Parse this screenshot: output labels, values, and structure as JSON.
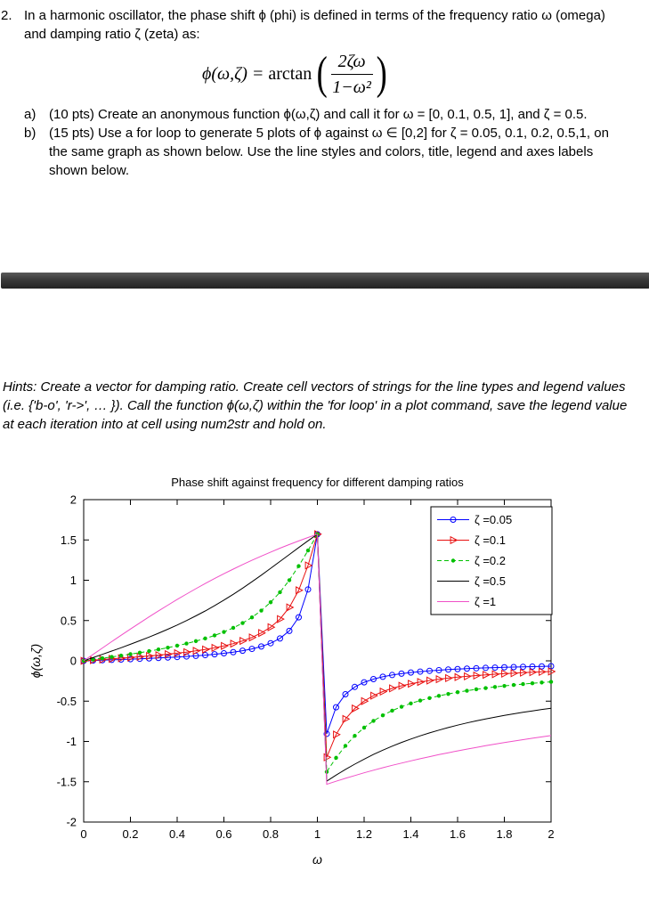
{
  "document": {
    "problem_number": "2.",
    "intro": "In a harmonic oscillator, the phase shift ϕ (phi) is defined in terms of the frequency ratio ω (omega) and damping ratio ζ (zeta) as:",
    "formula": {
      "lhs": "ϕ(ω,ζ) =",
      "function": "arctan",
      "numerator": "2ζω",
      "denominator": "1−ω²"
    },
    "items": [
      {
        "label": "a)",
        "text": "(10 pts) Create an anonymous function ϕ(ω,ζ) and call it for ω = [0, 0.1, 0.5, 1], and ζ = 0.5."
      },
      {
        "label": "b)",
        "text": "(15 pts) Use a for loop to generate 5 plots of ϕ against ω ∈ [0,2] for ζ = 0.05, 0.1, 0.2, 0.5,1, on the same graph as shown below. Use the line styles and colors, title, legend and axes labels shown below."
      }
    ],
    "hints": "Hints: Create a vector for damping ratio. Create cell vectors of strings for the line types and legend values (i.e. {'b-o', 'r->', … }). Call the function ϕ(ω,ζ) within the 'for loop' in a plot command, save the legend value at each iteration into at cell using num2str and hold on."
  },
  "chart_data": {
    "type": "line",
    "title": "Phase shift against frequency for different damping ratios",
    "xlabel": "ω",
    "ylabel": "ϕ(ω,ζ)",
    "xlim": [
      0,
      2
    ],
    "ylim": [
      -2,
      2
    ],
    "xticks": [
      0,
      0.2,
      0.4,
      0.6,
      0.8,
      1,
      1.2,
      1.4,
      1.6,
      1.8,
      2
    ],
    "yticks": [
      -2,
      -1.5,
      -1,
      -0.5,
      0,
      0.5,
      1,
      1.5,
      2
    ],
    "grid": false,
    "legend_position": "top-right",
    "formula": "phi(omega, zeta) = arctan(2*zeta*omega / (1 - omega^2))",
    "x_step": 0.04,
    "series": [
      {
        "name": "ζ =0.05",
        "zeta": 0.05,
        "color": "#0000ff",
        "line": "solid",
        "marker": "circle"
      },
      {
        "name": "ζ =0.1",
        "zeta": 0.1,
        "color": "#e81010",
        "line": "solid",
        "marker": "triangle-right"
      },
      {
        "name": "ζ =0.2",
        "zeta": 0.2,
        "color": "#00c000",
        "line": "dashed",
        "marker": "dot"
      },
      {
        "name": "ζ =0.5",
        "zeta": 0.5,
        "color": "#000000",
        "line": "solid",
        "marker": "none"
      },
      {
        "name": "ζ =1",
        "zeta": 1,
        "color": "#f050c8",
        "line": "solid",
        "marker": "none"
      }
    ]
  }
}
